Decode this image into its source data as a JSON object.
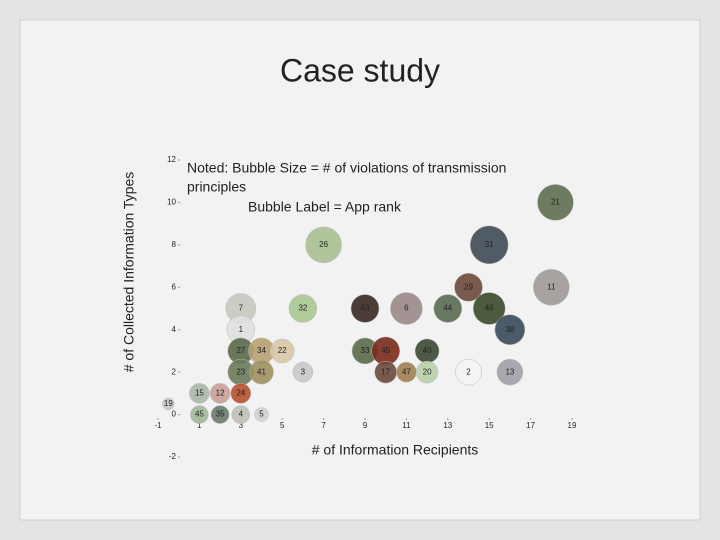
{
  "chart_data": {
    "type": "bubble",
    "title": "Case study",
    "annotations": [
      "Noted: Bubble Size = # of violations of transmission",
      "principles",
      "Bubble Label = App rank"
    ],
    "xlabel": "# of Information Recipients",
    "ylabel": "# of Collected Information Types",
    "xlim": [
      -1,
      19
    ],
    "ylim": [
      -2,
      12
    ],
    "xticks": [
      -1,
      1,
      3,
      5,
      7,
      9,
      11,
      13,
      15,
      17,
      19
    ],
    "yticks": [
      12,
      10,
      8,
      6,
      4,
      2,
      0,
      -2
    ],
    "points": {
      "labels": [
        "21",
        "26",
        "31",
        "29",
        "11",
        "7",
        "32",
        "43",
        "6",
        "44",
        "46",
        "38",
        "1",
        "27",
        "34",
        "22",
        "33",
        "45",
        "40",
        "23",
        "41",
        "3",
        "17",
        "47",
        "20",
        "2",
        "13",
        "15",
        "12",
        "24",
        "19",
        "45",
        "35",
        "4",
        "5"
      ],
      "x": [
        18.2,
        7,
        15,
        14,
        18,
        3,
        6,
        9,
        11,
        13,
        15,
        16,
        3,
        3,
        4,
        5,
        9,
        10,
        12,
        3,
        4,
        6,
        10,
        11,
        12,
        14,
        16,
        1,
        2,
        3,
        -0.5,
        1,
        2,
        3,
        4
      ],
      "y": [
        10,
        8,
        8,
        6,
        6,
        5,
        5,
        5,
        5,
        5,
        5,
        4,
        4,
        3,
        3,
        3,
        3,
        3,
        3,
        2,
        2,
        2,
        2,
        2,
        2,
        2,
        2,
        1,
        1,
        1,
        0.5,
        0,
        0,
        0,
        0
      ],
      "sizes": [
        18,
        18,
        19,
        14,
        18,
        15,
        14,
        14,
        16,
        14,
        16,
        15,
        14,
        13,
        13,
        12,
        13,
        14,
        12,
        13,
        12,
        10,
        11,
        10,
        11,
        13,
        13,
        10,
        10,
        10,
        6,
        9,
        9,
        9,
        7
      ],
      "colors": [
        "#5e6e50",
        "#a8c090",
        "#3e4a55",
        "#6a4a3a",
        "#a09a98",
        "#c8c8c0",
        "#a8c890",
        "#3a2a22",
        "#9a8a88",
        "#5a6a50",
        "#3a4a2a",
        "#3a4a5a",
        "#e0e0e0",
        "#5a6a4a",
        "#b8a070",
        "#d8c8a8",
        "#5a6a4a",
        "#7a2a1a",
        "#3a4a32",
        "#6a7a5a",
        "#a09060",
        "#c8c8c8",
        "#6a4a3a",
        "#a08050",
        "#b8d0a8",
        "#f4f4f4",
        "#a0a0a8",
        "#a8b8a8",
        "#c8a098",
        "#b85030",
        "#c8c8c8",
        "#a0b898",
        "#6a7a6a",
        "#c0c0b8",
        "#d0d0d0"
      ]
    }
  }
}
